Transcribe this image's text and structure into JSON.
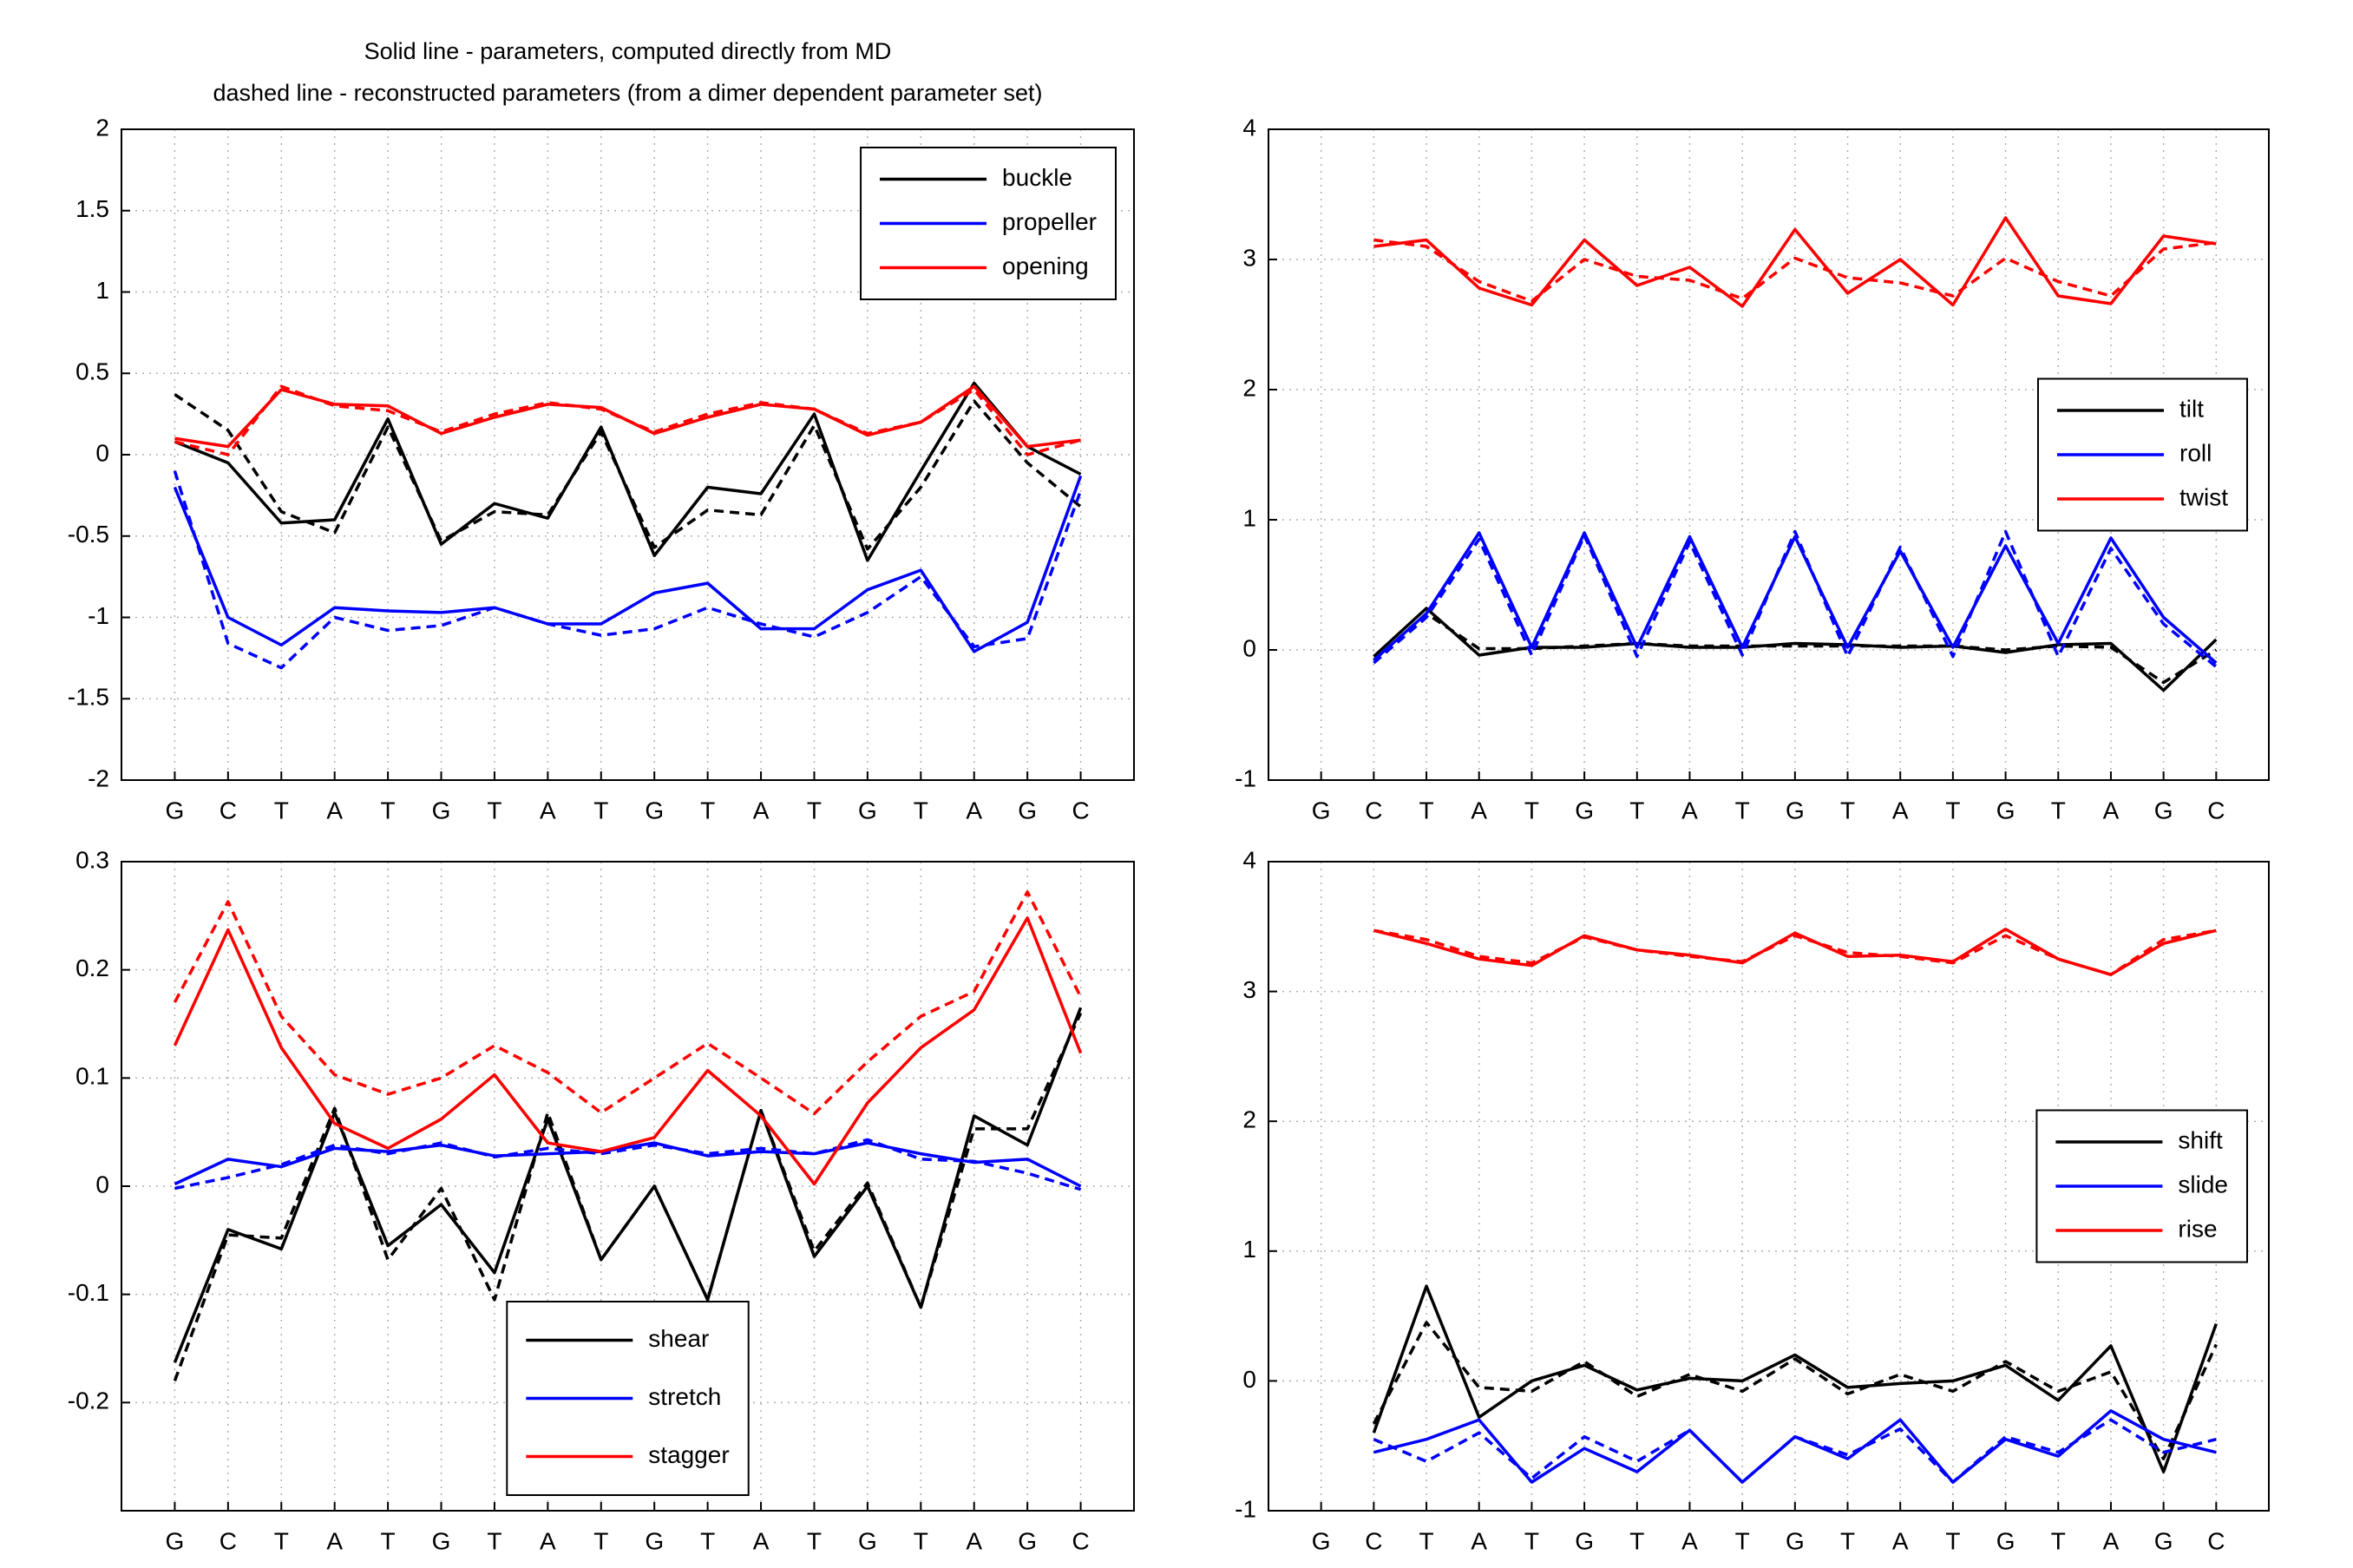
{
  "chart_data": [
    {
      "type": "line",
      "title": "Solid line - parameters, computed directly from MD",
      "subtitle": "dashed line - reconstructed parameters (from a dimer dependent parameter set)",
      "categories": [
        "G",
        "C",
        "T",
        "A",
        "T",
        "G",
        "T",
        "A",
        "T",
        "G",
        "T",
        "A",
        "T",
        "G",
        "T",
        "A",
        "G",
        "C"
      ],
      "ylim": [
        -2,
        2
      ],
      "yticks": [
        -2,
        -1.5,
        -1,
        -0.5,
        0,
        0.5,
        1,
        1.5,
        2
      ],
      "grid": true,
      "legend": "northeast",
      "series": [
        {
          "name": "buckle",
          "color": "#000000",
          "values": [
            0.08,
            -0.05,
            -0.42,
            -0.4,
            0.22,
            -0.55,
            -0.3,
            -0.39,
            0.17,
            -0.62,
            -0.2,
            -0.24,
            0.25,
            -0.65,
            -0.1,
            0.44,
            0.05,
            -0.12
          ],
          "dashed_values": [
            0.37,
            0.15,
            -0.35,
            -0.48,
            0.17,
            -0.53,
            -0.35,
            -0.37,
            0.14,
            -0.57,
            -0.34,
            -0.37,
            0.18,
            -0.58,
            -0.2,
            0.33,
            -0.05,
            -0.32
          ]
        },
        {
          "name": "propeller",
          "color": "#0000ff",
          "values": [
            -0.2,
            -1.0,
            -1.17,
            -0.94,
            -0.96,
            -0.97,
            -0.94,
            -1.04,
            -1.04,
            -0.85,
            -0.79,
            -1.07,
            -1.07,
            -0.83,
            -0.71,
            -1.21,
            -1.03,
            -0.13
          ],
          "dashed_values": [
            -0.1,
            -1.16,
            -1.31,
            -1.0,
            -1.08,
            -1.05,
            -0.94,
            -1.04,
            -1.11,
            -1.07,
            -0.94,
            -1.04,
            -1.12,
            -0.97,
            -0.75,
            -1.18,
            -1.13,
            -0.22
          ]
        },
        {
          "name": "opening",
          "color": "#ff0000",
          "values": [
            0.1,
            0.05,
            0.4,
            0.31,
            0.3,
            0.13,
            0.23,
            0.31,
            0.29,
            0.13,
            0.23,
            0.31,
            0.28,
            0.12,
            0.2,
            0.42,
            0.05,
            0.09
          ],
          "dashed_values": [
            0.08,
            0.0,
            0.42,
            0.3,
            0.27,
            0.14,
            0.25,
            0.32,
            0.28,
            0.14,
            0.25,
            0.32,
            0.28,
            0.13,
            0.2,
            0.4,
            0.0,
            0.09
          ]
        }
      ]
    },
    {
      "type": "line",
      "categories": [
        "G",
        "C",
        "T",
        "A",
        "T",
        "G",
        "T",
        "A",
        "T",
        "G",
        "T",
        "A",
        "T",
        "G",
        "T",
        "A",
        "G",
        "C"
      ],
      "ylim": [
        -1,
        4
      ],
      "yticks": [
        -1,
        0,
        1,
        2,
        3,
        4
      ],
      "grid": true,
      "legend": "east",
      "series": [
        {
          "name": "tilt",
          "color": "#000000",
          "values": [
            null,
            -0.05,
            0.32,
            -0.04,
            0.02,
            0.02,
            0.05,
            0.02,
            0.02,
            0.05,
            0.04,
            0.02,
            0.03,
            -0.02,
            0.04,
            0.05,
            -0.31,
            0.08
          ],
          "dashed_values": [
            null,
            -0.08,
            0.28,
            0.01,
            0.01,
            0.03,
            0.05,
            0.03,
            0.03,
            0.03,
            0.03,
            0.03,
            0.03,
            0.0,
            0.03,
            0.02,
            -0.25,
            0.0
          ]
        },
        {
          "name": "roll",
          "color": "#0000ff",
          "values": [
            null,
            -0.08,
            0.28,
            0.9,
            0.02,
            0.9,
            0.02,
            0.87,
            0.02,
            0.87,
            0.02,
            0.76,
            0.02,
            0.8,
            0.05,
            0.86,
            0.25,
            -0.1
          ],
          "dashed_values": [
            null,
            -0.1,
            0.25,
            0.85,
            -0.04,
            0.88,
            -0.05,
            0.83,
            -0.04,
            0.91,
            -0.05,
            0.79,
            -0.05,
            0.91,
            -0.05,
            0.78,
            0.2,
            -0.13
          ]
        },
        {
          "name": "twist",
          "color": "#ff0000",
          "values": [
            null,
            3.1,
            3.15,
            2.78,
            2.65,
            3.15,
            2.8,
            2.94,
            2.64,
            3.23,
            2.74,
            3.0,
            2.65,
            3.32,
            2.72,
            2.66,
            3.18,
            3.12
          ],
          "dashed_values": [
            null,
            3.15,
            3.1,
            2.83,
            2.68,
            3.0,
            2.87,
            2.84,
            2.7,
            3.01,
            2.86,
            2.82,
            2.72,
            3.01,
            2.83,
            2.72,
            3.08,
            3.13
          ]
        }
      ]
    },
    {
      "type": "line",
      "categories": [
        "G",
        "C",
        "T",
        "A",
        "T",
        "G",
        "T",
        "A",
        "T",
        "G",
        "T",
        "A",
        "T",
        "G",
        "T",
        "A",
        "G",
        "C"
      ],
      "ylim": [
        -0.3,
        0.3
      ],
      "yticks": [
        -0.2,
        -0.1,
        0,
        0.1,
        0.2,
        0.3
      ],
      "grid": true,
      "legend": "south",
      "series": [
        {
          "name": "shear",
          "color": "#000000",
          "values": [
            -0.163,
            -0.04,
            -0.058,
            0.068,
            -0.055,
            -0.017,
            -0.08,
            0.062,
            -0.068,
            0.0,
            -0.105,
            0.07,
            -0.065,
            0.0,
            -0.112,
            0.065,
            0.038,
            0.165
          ],
          "dashed_values": [
            -0.18,
            -0.045,
            -0.048,
            0.072,
            -0.068,
            -0.002,
            -0.105,
            0.068,
            -0.068,
            0.0,
            -0.105,
            0.07,
            -0.06,
            0.003,
            -0.112,
            0.053,
            0.053,
            0.16
          ]
        },
        {
          "name": "stretch",
          "color": "#0000ff",
          "values": [
            0.002,
            0.025,
            0.018,
            0.035,
            0.032,
            0.038,
            0.028,
            0.03,
            0.032,
            0.04,
            0.028,
            0.032,
            0.03,
            0.04,
            0.03,
            0.022,
            0.025,
            0.0
          ],
          "dashed_values": [
            -0.002,
            0.008,
            0.02,
            0.038,
            0.03,
            0.04,
            0.027,
            0.035,
            0.03,
            0.038,
            0.03,
            0.035,
            0.03,
            0.043,
            0.025,
            0.023,
            0.012,
            -0.003
          ]
        },
        {
          "name": "stagger",
          "color": "#ff0000",
          "values": [
            0.13,
            0.237,
            0.128,
            0.058,
            0.035,
            0.062,
            0.103,
            0.04,
            0.032,
            0.045,
            0.107,
            0.065,
            0.002,
            0.077,
            0.128,
            0.163,
            0.248,
            0.123
          ],
          "dashed_values": [
            0.17,
            0.263,
            0.157,
            0.103,
            0.085,
            0.1,
            0.13,
            0.105,
            0.068,
            0.1,
            0.132,
            0.1,
            0.067,
            0.115,
            0.157,
            0.18,
            0.272,
            0.175
          ]
        }
      ]
    },
    {
      "type": "line",
      "categories": [
        "G",
        "C",
        "T",
        "A",
        "T",
        "G",
        "T",
        "A",
        "T",
        "G",
        "T",
        "A",
        "T",
        "G",
        "T",
        "A",
        "G",
        "C"
      ],
      "ylim": [
        -1,
        4
      ],
      "yticks": [
        -1,
        0,
        1,
        2,
        3,
        4
      ],
      "grid": true,
      "legend": "east",
      "series": [
        {
          "name": "shift",
          "color": "#000000",
          "values": [
            null,
            -0.4,
            0.73,
            -0.28,
            0.0,
            0.12,
            -0.07,
            0.02,
            0.0,
            0.2,
            -0.05,
            -0.02,
            0.0,
            0.12,
            -0.15,
            0.27,
            -0.7,
            0.44
          ],
          "dashed_values": [
            null,
            -0.33,
            0.45,
            -0.05,
            -0.08,
            0.15,
            -0.12,
            0.05,
            -0.08,
            0.17,
            -0.1,
            0.05,
            -0.08,
            0.15,
            -0.08,
            0.07,
            -0.6,
            0.28
          ]
        },
        {
          "name": "slide",
          "color": "#0000ff",
          "values": [
            null,
            -0.55,
            -0.45,
            -0.3,
            -0.78,
            -0.52,
            -0.7,
            -0.38,
            -0.78,
            -0.43,
            -0.6,
            -0.3,
            -0.78,
            -0.45,
            -0.58,
            -0.23,
            -0.45,
            -0.55
          ],
          "dashed_values": [
            null,
            -0.45,
            -0.62,
            -0.4,
            -0.75,
            -0.43,
            -0.62,
            -0.38,
            -0.78,
            -0.43,
            -0.57,
            -0.37,
            -0.78,
            -0.43,
            -0.55,
            -0.3,
            -0.55,
            -0.45
          ]
        },
        {
          "name": "rise",
          "color": "#ff0000",
          "values": [
            null,
            3.47,
            3.37,
            3.25,
            3.2,
            3.43,
            3.32,
            3.28,
            3.22,
            3.45,
            3.27,
            3.28,
            3.23,
            3.48,
            3.25,
            3.13,
            3.37,
            3.47
          ],
          "dashed_values": [
            null,
            3.47,
            3.4,
            3.27,
            3.22,
            3.42,
            3.32,
            3.27,
            3.23,
            3.43,
            3.3,
            3.27,
            3.22,
            3.43,
            3.25,
            3.13,
            3.4,
            3.47
          ]
        }
      ]
    }
  ]
}
